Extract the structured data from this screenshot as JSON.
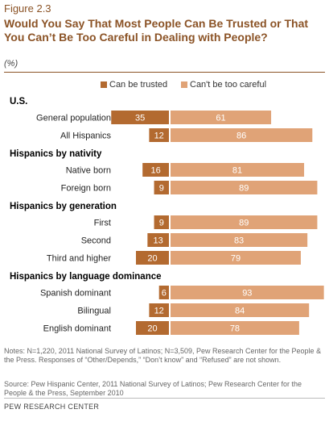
{
  "figure_label": "Figure 2.3",
  "title": "Would You Say That Most People Can Be Trusted or That You Can’t Be Too Careful in Dealing with People?",
  "unit": "(%)",
  "legend": {
    "trusted": "Can be trusted",
    "careful": "Can't be too careful"
  },
  "colors": {
    "trusted": "#b36a30",
    "careful": "#e0a377",
    "section": "#000000"
  },
  "chart_data": {
    "type": "bar",
    "orientation": "horizontal-diverging",
    "series": [
      {
        "name": "Can be trusted",
        "values": [
          35,
          12,
          16,
          9,
          9,
          13,
          20,
          6,
          12,
          20
        ]
      },
      {
        "name": "Can't be too careful",
        "values": [
          61,
          86,
          81,
          89,
          89,
          83,
          79,
          93,
          84,
          78
        ]
      }
    ],
    "rows": [
      {
        "kind": "section",
        "label": "U.S."
      },
      {
        "kind": "bar",
        "label": "General population",
        "trusted": 35,
        "careful": 61
      },
      {
        "kind": "bar",
        "label": "All Hispanics",
        "trusted": 12,
        "careful": 86
      },
      {
        "kind": "section",
        "label": "Hispanics by nativity"
      },
      {
        "kind": "bar",
        "label": "Native born",
        "trusted": 16,
        "careful": 81
      },
      {
        "kind": "bar",
        "label": "Foreign born",
        "trusted": 9,
        "careful": 89
      },
      {
        "kind": "section",
        "label": "Hispanics by generation"
      },
      {
        "kind": "bar",
        "label": "First",
        "trusted": 9,
        "careful": 89
      },
      {
        "kind": "bar",
        "label": "Second",
        "trusted": 13,
        "careful": 83
      },
      {
        "kind": "bar",
        "label": "Third and higher",
        "trusted": 20,
        "careful": 79
      },
      {
        "kind": "section",
        "label": "Hispanics by language dominance"
      },
      {
        "kind": "bar",
        "label": "Spanish dominant",
        "trusted": 6,
        "careful": 93
      },
      {
        "kind": "bar",
        "label": "Bilingual",
        "trusted": 12,
        "careful": 84
      },
      {
        "kind": "bar",
        "label": "English dominant",
        "trusted": 20,
        "careful": 78
      }
    ]
  },
  "notes": "Notes: N=1,220, 2011 National Survey of Latinos; N=3,509, Pew Research Center for the People & the Press. Responses of “Other/Depends,” “Don’t know” and “Refused” are not shown.",
  "source": "Source: Pew Hispanic Center, 2011 National Survey of Latinos; Pew Research Center for the People & the Press, September 2010",
  "org": "PEW RESEARCH CENTER"
}
